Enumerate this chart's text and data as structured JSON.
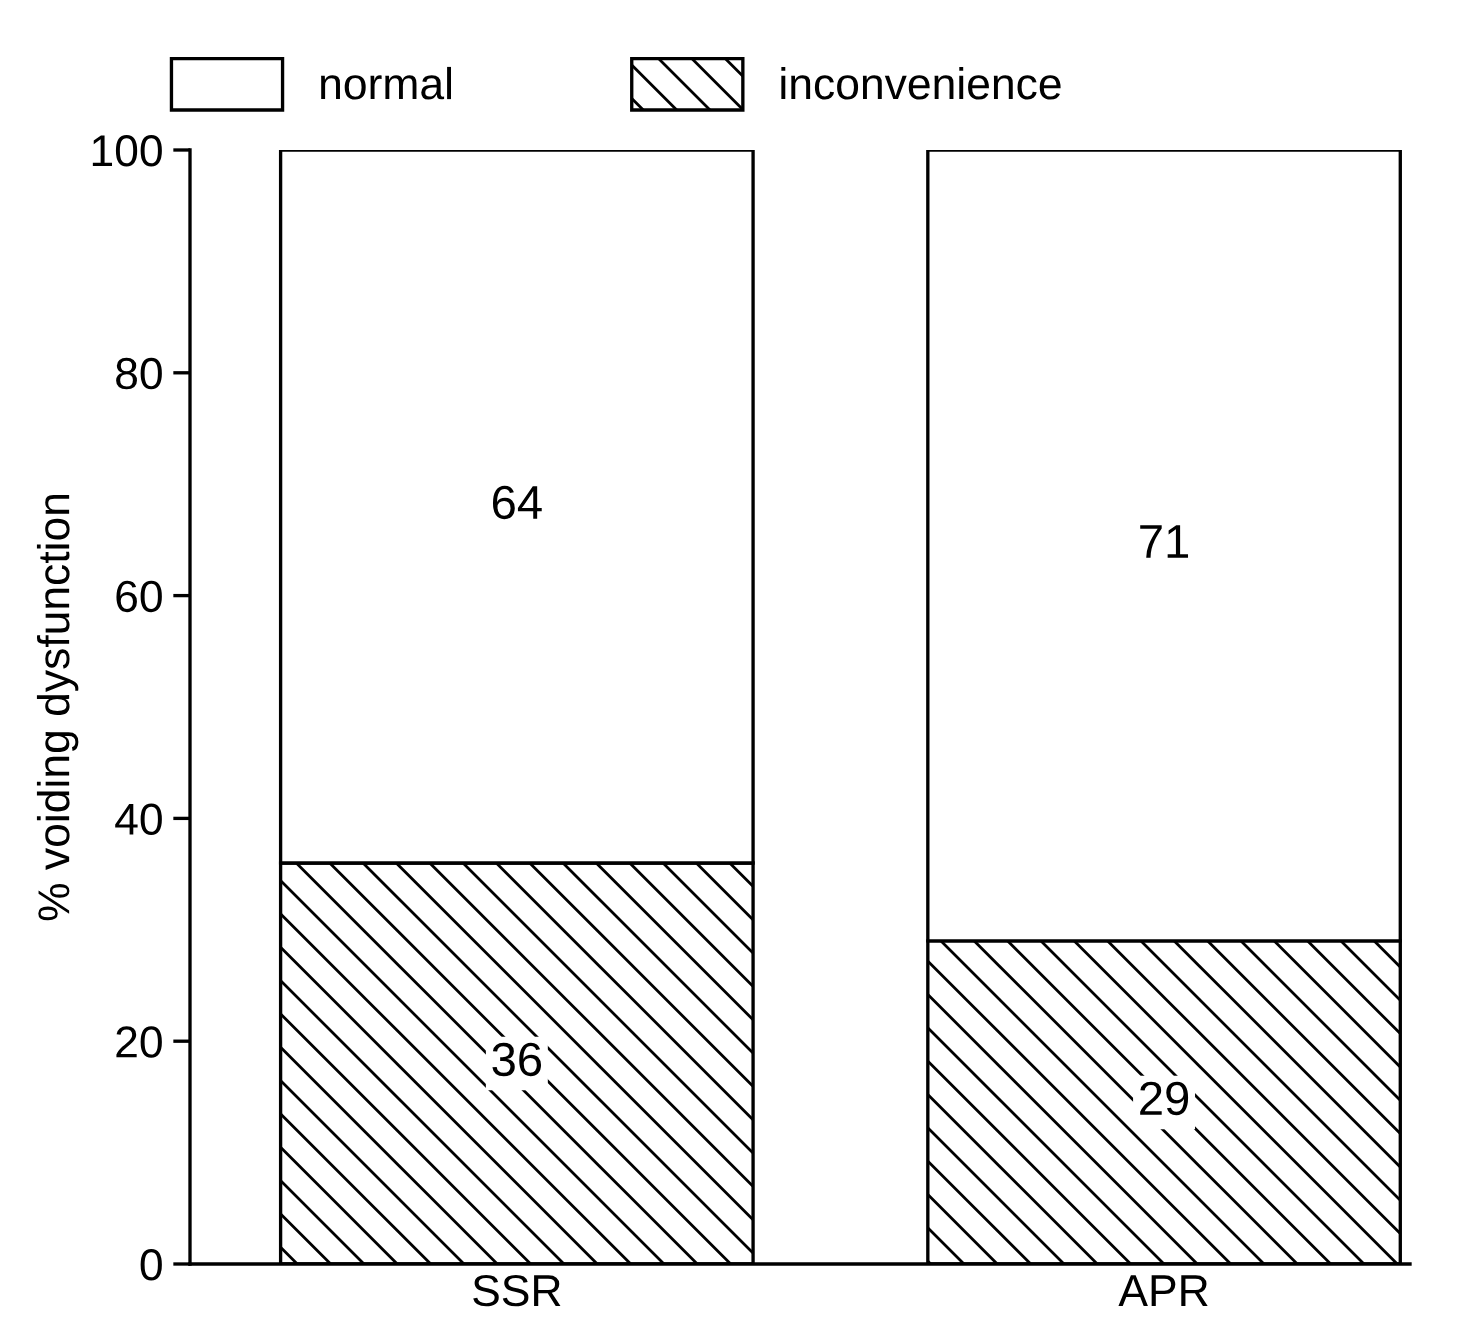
{
  "chart_data": {
    "type": "bar",
    "stacked": true,
    "ylabel": "% voiding dysfunction",
    "categories": [
      "SSR",
      "APR"
    ],
    "series": [
      {
        "name": "inconvenience",
        "color": "#000000",
        "values": [
          36,
          29
        ]
      },
      {
        "name": "normal",
        "color": "#ffffff",
        "values": [
          64,
          71
        ]
      }
    ],
    "ylim": [
      0,
      100
    ],
    "yticks": [
      0,
      20,
      40,
      60,
      80,
      100
    ],
    "grid": false,
    "legend": "top",
    "data_labels": true
  }
}
